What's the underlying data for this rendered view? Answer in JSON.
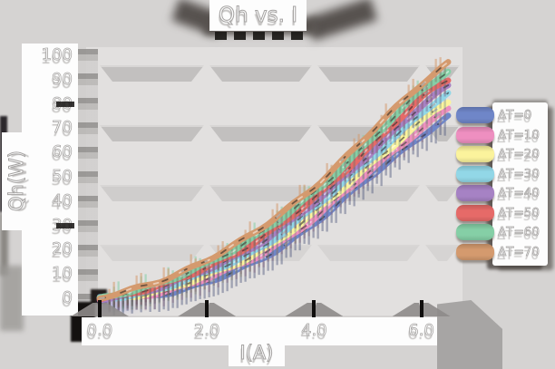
{
  "chart_data": {
    "type": "line",
    "title": "Qh vs. I",
    "xlabel": "I(A)",
    "ylabel": "Qh(W)",
    "x_tick_labels": [
      "0.0",
      "2.0",
      "4.0",
      "6.0"
    ],
    "x_tick_values": [
      0,
      2,
      4,
      6
    ],
    "y_tick_labels": [
      "0",
      "10",
      "20",
      "30",
      "40",
      "50",
      "60",
      "70",
      "80",
      "90",
      "100"
    ],
    "y_tick_values": [
      0,
      10,
      20,
      30,
      40,
      50,
      60,
      70,
      80,
      90,
      100
    ],
    "xlim": [
      -0.25,
      6.8
    ],
    "ylim": [
      0,
      100
    ],
    "grid": "horizontal bands",
    "legend_position": "right",
    "x": [
      0,
      1,
      2,
      3,
      4,
      5,
      6,
      6.5
    ],
    "series": [
      {
        "name": "ΔT=0",
        "color": "#6f86c8",
        "values": [
          0,
          1.5,
          6.5,
          16,
          31,
          49,
          67,
          75
        ]
      },
      {
        "name": "ΔT=10",
        "color": "#ee8fc0",
        "values": [
          0,
          2,
          8,
          18,
          33,
          51.5,
          70,
          78
        ]
      },
      {
        "name": "ΔT=20",
        "color": "#fbf39c",
        "values": [
          0,
          2.5,
          9,
          19.5,
          35,
          54,
          73,
          81
        ]
      },
      {
        "name": "ΔT=30",
        "color": "#92d7e7",
        "values": [
          0,
          3,
          10.5,
          21,
          37,
          56.5,
          76,
          84
        ]
      },
      {
        "name": "ΔT=40",
        "color": "#a682c4",
        "values": [
          0,
          3.5,
          12,
          23,
          39,
          59,
          79,
          87
        ]
      },
      {
        "name": "ΔT=50",
        "color": "#e66a68",
        "values": [
          0,
          4,
          13,
          24.5,
          41,
          61.5,
          82,
          90
        ]
      },
      {
        "name": "ΔT=60",
        "color": "#85cfa6",
        "values": [
          0,
          5,
          14.5,
          26.5,
          43.5,
          64,
          85,
          93.5
        ]
      },
      {
        "name": "ΔT=70",
        "color": "#d49a6e",
        "values": [
          0,
          6,
          16,
          28.5,
          46,
          67,
          88,
          97
        ]
      }
    ],
    "style": {
      "background": "#d5d3d2",
      "plot_background": "#e2e0df",
      "band_color": "#c2c0bf",
      "shadow_color": "#57524f",
      "text_color": "#ffffff",
      "text_outline": "#a5a3a2"
    }
  }
}
